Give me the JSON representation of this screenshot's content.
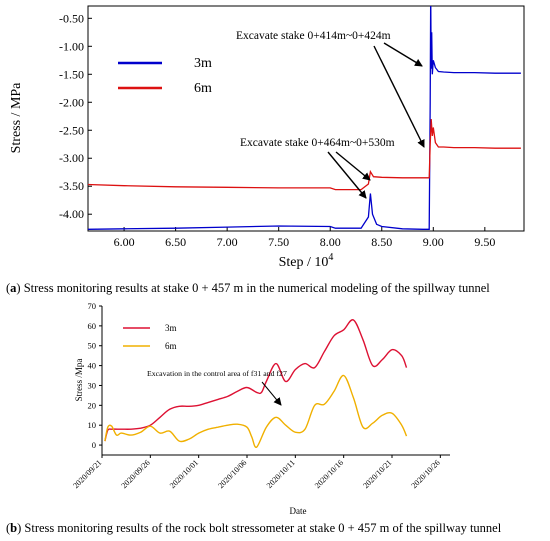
{
  "charts": [
    {
      "type": "line",
      "xlabel": "Step / 10",
      "xlabel_exp": "4",
      "ylabel": "Stress / MPa",
      "xlim": [
        5.65,
        9.88
      ],
      "ylim": [
        -4.3,
        -0.28
      ],
      "xticks": [
        6.0,
        6.5,
        7.0,
        7.5,
        8.0,
        8.5,
        9.0,
        9.5
      ],
      "xtick_labels": [
        "6.00",
        "6.50",
        "7.00",
        "7.50",
        "8.00",
        "8.50",
        "9.00",
        "9.50"
      ],
      "yticks": [
        -4.0,
        -3.5,
        -3.0,
        -2.5,
        -2.0,
        -1.5,
        -1.0,
        -0.5
      ],
      "ytick_labels": [
        "-4.00",
        "-3.50",
        "-3.00",
        "-2.50",
        "-2.00",
        "-1.50",
        "-1.00",
        "-0.50"
      ],
      "legend": [
        "3m",
        "6m"
      ],
      "annotations": [
        "Excavate stake 0+414m~0+424m",
        "Excavate stake 0+464m~0+530m"
      ],
      "series": [
        {
          "name": "3m",
          "color": "#0000cc",
          "x": [
            5.65,
            6.0,
            6.5,
            7.0,
            7.5,
            8.0,
            8.05,
            8.3,
            8.37,
            8.39,
            8.41,
            8.45,
            8.5,
            8.7,
            8.9,
            8.96,
            8.97,
            8.975,
            8.98,
            8.985,
            8.99,
            9.0,
            9.02,
            9.05,
            9.1,
            9.2,
            9.4,
            9.6,
            9.85
          ],
          "y": [
            -4.27,
            -4.26,
            -4.25,
            -4.23,
            -4.21,
            -4.22,
            -4.25,
            -4.25,
            -4.05,
            -3.63,
            -4.0,
            -4.18,
            -4.22,
            -4.26,
            -4.27,
            -4.27,
            -2.0,
            -0.05,
            -1.4,
            -0.75,
            -1.5,
            -1.25,
            -1.38,
            -1.45,
            -1.46,
            -1.47,
            -1.47,
            -1.48,
            -1.48
          ]
        },
        {
          "name": "6m",
          "color": "#dd1111",
          "x": [
            5.65,
            6.0,
            6.5,
            7.0,
            7.5,
            8.0,
            8.05,
            8.3,
            8.37,
            8.39,
            8.42,
            8.5,
            8.7,
            8.96,
            8.97,
            8.98,
            8.99,
            9.0,
            9.02,
            9.05,
            9.1,
            9.2,
            9.4,
            9.6,
            9.85
          ],
          "y": [
            -3.47,
            -3.49,
            -3.51,
            -3.52,
            -3.53,
            -3.53,
            -3.56,
            -3.56,
            -3.46,
            -3.24,
            -3.33,
            -3.34,
            -3.35,
            -3.35,
            -2.75,
            -2.3,
            -2.6,
            -2.45,
            -2.72,
            -2.8,
            -2.8,
            -2.81,
            -2.81,
            -2.82,
            -2.82
          ]
        }
      ]
    },
    {
      "type": "line",
      "xlabel": "Date",
      "ylabel": "Stress /Mpa",
      "xlim": [
        0,
        36
      ],
      "ylim": [
        -5,
        70
      ],
      "xticks": [
        0,
        5,
        10,
        15,
        20,
        25,
        30,
        35
      ],
      "xtick_labels": [
        "2020/09/21",
        "2020/09/26",
        "2020/10/01",
        "2020/10/06",
        "2020/10/11",
        "2020/10/16",
        "2020/10/21",
        "2020/10/26"
      ],
      "yticks": [
        0,
        10,
        20,
        30,
        40,
        50,
        60,
        70
      ],
      "ytick_labels": [
        "0",
        "10",
        "20",
        "30",
        "40",
        "50",
        "60",
        "70"
      ],
      "legend": [
        "3m",
        "6m"
      ],
      "annotations": [
        "Excavation in the control area of f31 and f27"
      ],
      "series": [
        {
          "name": "3m",
          "color": "#dd1133",
          "x": [
            0.3,
            0.6,
            1.0,
            2,
            3,
            4,
            5,
            6,
            7,
            8,
            9,
            10,
            11,
            12,
            13,
            14,
            15,
            16,
            16.5,
            17,
            18,
            19,
            20,
            21,
            22,
            23,
            24,
            25,
            26,
            27,
            28,
            29,
            30,
            31,
            31.5
          ],
          "y": [
            2,
            7.5,
            8,
            8,
            8,
            8.5,
            10,
            14,
            18,
            19.5,
            19.5,
            20,
            21.5,
            23,
            24.5,
            27,
            29,
            26.5,
            26.5,
            32,
            41,
            32,
            38,
            41,
            39,
            47,
            55,
            58,
            63,
            53,
            40,
            43,
            48,
            45,
            39
          ]
        },
        {
          "name": "6m",
          "color": "#f0b000",
          "x": [
            0.3,
            0.6,
            1.0,
            1.5,
            2,
            3,
            4,
            5,
            6,
            7,
            8,
            9,
            10,
            11,
            12,
            13,
            14,
            15,
            15.5,
            16,
            17,
            18,
            19,
            20,
            21,
            22,
            23,
            24,
            25,
            26,
            27,
            28,
            29,
            30,
            31,
            31.5
          ],
          "y": [
            2,
            9,
            9.5,
            5,
            6,
            5,
            6.5,
            9.5,
            6,
            7,
            2,
            3,
            6,
            8,
            9,
            10,
            10.5,
            9,
            4,
            -1,
            9,
            14,
            10,
            6.5,
            8,
            20,
            20.5,
            27,
            35,
            24,
            9,
            11,
            15,
            16,
            10,
            4.5
          ]
        }
      ]
    }
  ],
  "captions": {
    "a_label": "a",
    "a_text": " Stress monitoring results at stake 0 + 457 m in the numerical modeling of the spillway tunnel",
    "b_label": "b",
    "b_text": " Stress monitoring results of the rock bolt stressometer at stake 0 + 457 m of the spillway tunnel"
  }
}
